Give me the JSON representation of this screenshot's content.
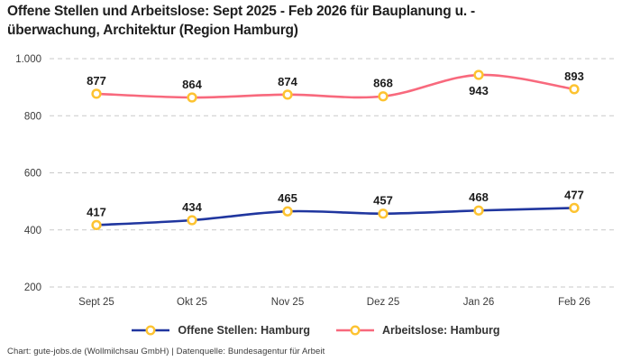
{
  "title": "Offene Stellen und Arbeitslose: Sept 2025 - Feb 2026 für Bauplanung u. -\nüberwachung, Architektur (Region Hamburg)",
  "footer": "Chart: gute-jobs.de (Wollmilchsau GmbH) | Datenquelle: Bundesagentur für Arbeit",
  "colors": {
    "blue": "#20369F",
    "pink": "#F8697D",
    "marker_ring": "#FDC331",
    "marker_fill": "#FFFFFF",
    "grid": "#C9C9C9",
    "axis_text": "#3b3b3b",
    "value_label": "#1c1c1c",
    "title_text": "#1f1f1f"
  },
  "chart_data": {
    "type": "line",
    "title": "Offene Stellen und Arbeitslose: Sept 2025 - Feb 2026 für Bauplanung u. -überwachung, Architektur (Region Hamburg)",
    "xlabel": "",
    "ylabel": "",
    "categories": [
      "Sept 25",
      "Okt 25",
      "Nov 25",
      "Dez 25",
      "Jan 26",
      "Feb 26"
    ],
    "series": [
      {
        "name": "Offene Stellen: Hamburg",
        "color": "#20369F",
        "values": [
          417,
          434,
          465,
          457,
          468,
          477
        ]
      },
      {
        "name": "Arbeitslose: Hamburg",
        "color": "#F8697D",
        "values": [
          877,
          864,
          874,
          868,
          943,
          893
        ]
      }
    ],
    "ylim": [
      200,
      1000
    ],
    "yticks": [
      200,
      400,
      600,
      800,
      1000
    ],
    "ytick_labels": [
      "200",
      "400",
      "600",
      "800",
      "1.000"
    ],
    "grid": "horizontal-dashed",
    "legend_position": "bottom",
    "marker": "circle-yellow-ring",
    "data_labels": "shown-bold"
  }
}
